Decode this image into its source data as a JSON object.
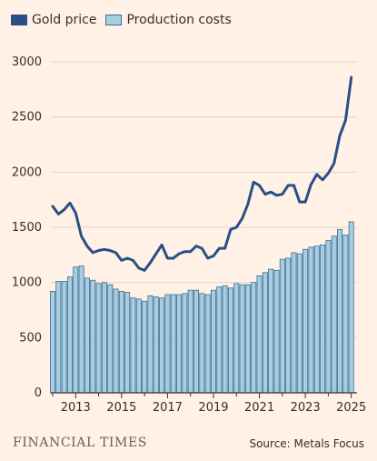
{
  "legend": {
    "gold_label": "Gold price",
    "production_label": "Production costs"
  },
  "footer": {
    "logo": "FINANCIAL TIMES",
    "source": "Source: Metals Focus"
  },
  "colors": {
    "gold_line": "#2a4f86",
    "bars_fill": "#a7cde2",
    "bars_stroke": "#3e6d8f",
    "grid": "#e0d3c7",
    "background": "#fff1e5"
  },
  "chart_data": {
    "type": "bar+line",
    "ylim": [
      0,
      3000
    ],
    "yticks": [
      0,
      500,
      1000,
      1500,
      2000,
      2500,
      3000
    ],
    "xlim": [
      2012,
      2025.25
    ],
    "xtick_labels": [
      "2013",
      "2015",
      "2017",
      "2019",
      "2021",
      "2023",
      "2025"
    ],
    "grid": true,
    "legend_position": "top-left",
    "series": [
      {
        "name": "Gold price",
        "type": "line",
        "x": [
          2012.0,
          2012.25,
          2012.5,
          2012.75,
          2013.0,
          2013.25,
          2013.5,
          2013.75,
          2014.0,
          2014.25,
          2014.5,
          2014.75,
          2015.0,
          2015.25,
          2015.5,
          2015.75,
          2016.0,
          2016.25,
          2016.5,
          2016.75,
          2017.0,
          2017.25,
          2017.5,
          2017.75,
          2018.0,
          2018.25,
          2018.5,
          2018.75,
          2019.0,
          2019.25,
          2019.5,
          2019.75,
          2020.0,
          2020.25,
          2020.5,
          2020.75,
          2021.0,
          2021.25,
          2021.5,
          2021.75,
          2022.0,
          2022.25,
          2022.5,
          2022.75,
          2023.0,
          2023.25,
          2023.5,
          2023.75,
          2024.0,
          2024.25,
          2024.5,
          2024.75,
          2025.0
        ],
        "values": [
          1690,
          1620,
          1660,
          1720,
          1630,
          1420,
          1330,
          1270,
          1290,
          1300,
          1290,
          1270,
          1200,
          1220,
          1200,
          1130,
          1110,
          1180,
          1260,
          1340,
          1220,
          1220,
          1260,
          1280,
          1280,
          1330,
          1310,
          1220,
          1240,
          1310,
          1310,
          1480,
          1500,
          1580,
          1710,
          1910,
          1880,
          1800,
          1820,
          1790,
          1800,
          1880,
          1880,
          1730,
          1730,
          1890,
          1980,
          1930,
          1990,
          2080,
          2330,
          2470,
          2860
        ]
      },
      {
        "name": "Production costs",
        "type": "bar",
        "x_start": 2012,
        "x_step": 0.25,
        "values": [
          920,
          1010,
          1010,
          1050,
          1140,
          1150,
          1040,
          1020,
          990,
          1000,
          980,
          940,
          920,
          910,
          860,
          850,
          830,
          880,
          870,
          860,
          890,
          890,
          890,
          900,
          930,
          930,
          900,
          890,
          930,
          960,
          970,
          950,
          990,
          980,
          980,
          1000,
          1060,
          1090,
          1120,
          1110,
          1210,
          1220,
          1270,
          1260,
          1300,
          1320,
          1330,
          1340,
          1380,
          1420,
          1480,
          1430,
          1550
        ]
      }
    ]
  }
}
